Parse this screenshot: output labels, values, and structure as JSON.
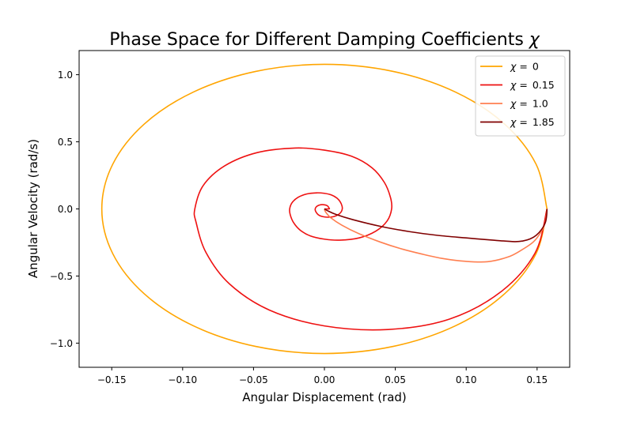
{
  "chart_data": {
    "type": "line",
    "title": "Phase Space for Different Damping Coefficients χ",
    "title_prefix": "Phase Space for Different Damping Coefficients ",
    "title_symbol": "χ",
    "xlabel": "Angular Displacement (rad)",
    "ylabel": "Angular Velocity (rad/s)",
    "xlim": [
      -0.173,
      0.173
    ],
    "ylim": [
      -1.18,
      1.18
    ],
    "grid": false,
    "legend_position": "top-right",
    "x_ticks": [
      {
        "value": -0.15,
        "label": "−0.15"
      },
      {
        "value": -0.1,
        "label": "−0.10"
      },
      {
        "value": -0.05,
        "label": "−0.05"
      },
      {
        "value": 0.0,
        "label": "0.00"
      },
      {
        "value": 0.05,
        "label": "0.05"
      },
      {
        "value": 0.1,
        "label": "0.10"
      },
      {
        "value": 0.15,
        "label": "0.15"
      }
    ],
    "y_ticks": [
      {
        "value": -1.0,
        "label": "−1.0"
      },
      {
        "value": -0.5,
        "label": "−0.5"
      },
      {
        "value": 0.0,
        "label": "0.0"
      },
      {
        "value": 0.5,
        "label": "0.5"
      },
      {
        "value": 1.0,
        "label": "1.0"
      }
    ],
    "series": [
      {
        "name": "0",
        "legend_symbol": "χ =",
        "legend_label": "0",
        "color": "#ffa500",
        "points": [
          [
            0.157,
            0.0
          ],
          [
            0.1493,
            -0.3329
          ],
          [
            0.127,
            -0.6332
          ],
          [
            0.0923,
            -0.8715
          ],
          [
            0.0485,
            -1.0245
          ],
          [
            0.0,
            -1.0772
          ],
          [
            -0.0485,
            -1.0245
          ],
          [
            -0.0923,
            -0.8715
          ],
          [
            -0.127,
            -0.6332
          ],
          [
            -0.1493,
            -0.3329
          ],
          [
            -0.157,
            0.0
          ],
          [
            -0.1493,
            0.3329
          ],
          [
            -0.127,
            0.6332
          ],
          [
            -0.0923,
            0.8715
          ],
          [
            -0.0485,
            1.0245
          ],
          [
            0.0,
            1.0772
          ],
          [
            0.0485,
            1.0245
          ],
          [
            0.0923,
            0.8715
          ],
          [
            0.127,
            0.6332
          ],
          [
            0.1493,
            0.3329
          ],
          [
            0.157,
            0.0
          ]
        ]
      },
      {
        "name": "0.15",
        "legend_symbol": "χ =",
        "legend_label": "0.15",
        "color": "#ee1111",
        "points": [
          [
            0.157,
            0.0
          ],
          [
            0.1485,
            -0.3304
          ],
          [
            0.1244,
            -0.6182
          ],
          [
            0.0882,
            -0.8208
          ],
          [
            0.0449,
            -0.8985
          ],
          [
            0.0,
            -0.8718
          ],
          [
            -0.0389,
            -0.7531
          ],
          [
            -0.067,
            -0.5584
          ],
          [
            -0.0835,
            -0.3254
          ],
          [
            -0.0905,
            -0.1
          ],
          [
            -0.0914,
            0.0
          ],
          [
            -0.0855,
            0.1742
          ],
          [
            -0.0702,
            0.3217
          ],
          [
            -0.0474,
            0.4196
          ],
          [
            -0.0207,
            0.4537
          ],
          [
            0.0,
            0.4381
          ],
          [
            0.0191,
            0.3925
          ],
          [
            0.0336,
            0.3062
          ],
          [
            0.0423,
            0.1971
          ],
          [
            0.0466,
            0.0854
          ],
          [
            0.0474,
            0.0
          ],
          [
            0.0442,
            -0.0903
          ],
          [
            0.0362,
            -0.1661
          ],
          [
            0.0245,
            -0.2159
          ],
          [
            0.0107,
            -0.2328
          ],
          [
            0.0,
            -0.2252
          ],
          [
            -0.0098,
            -0.2016
          ],
          [
            -0.0172,
            -0.1572
          ],
          [
            -0.0218,
            -0.1014
          ],
          [
            -0.0241,
            -0.0438
          ],
          [
            -0.0245,
            0.0
          ],
          [
            -0.0228,
            0.0466
          ],
          [
            -0.0187,
            0.0854
          ],
          [
            -0.0126,
            0.1112
          ],
          [
            -0.0055,
            0.1198
          ],
          [
            0.0,
            0.1161
          ],
          [
            0.005,
            0.1037
          ],
          [
            0.0088,
            0.0808
          ],
          [
            0.0112,
            0.0522
          ],
          [
            0.0124,
            0.0226
          ],
          [
            0.0126,
            0.0
          ],
          [
            0.0117,
            -0.0238
          ],
          [
            0.0096,
            -0.0438
          ],
          [
            0.0065,
            -0.0572
          ],
          [
            0.0028,
            -0.0617
          ],
          [
            0.0,
            -0.0597
          ],
          [
            -0.0026,
            -0.0533
          ],
          [
            -0.0045,
            -0.0416
          ],
          [
            -0.0057,
            -0.0268
          ],
          [
            -0.0064,
            -0.0116
          ],
          [
            -0.0065,
            0.0
          ],
          [
            -0.006,
            0.0122
          ],
          [
            -0.0049,
            0.0225
          ],
          [
            -0.0033,
            0.0294
          ],
          [
            -0.0015,
            0.0317
          ],
          [
            0.0,
            0.0307
          ],
          [
            0.0013,
            0.0274
          ],
          [
            0.0023,
            0.0214
          ],
          [
            0.0029,
            0.0138
          ],
          [
            0.0033,
            0.006
          ],
          [
            0.0033,
            0.0
          ],
          [
            0.0,
            0.0
          ]
        ]
      },
      {
        "name": "1.0",
        "legend_symbol": "χ =",
        "legend_label": "1.0",
        "color": "#ff7f50",
        "points": [
          [
            0.157,
            0.0
          ],
          [
            0.156,
            -0.0905
          ],
          [
            0.1532,
            -0.1639
          ],
          [
            0.1474,
            -0.2456
          ],
          [
            0.1386,
            -0.3091
          ],
          [
            0.1296,
            -0.3577
          ],
          [
            0.1152,
            -0.3932
          ],
          [
            0.0995,
            -0.3905
          ],
          [
            0.084,
            -0.3704
          ],
          [
            0.0689,
            -0.3366
          ],
          [
            0.0535,
            -0.2952
          ],
          [
            0.0394,
            -0.2468
          ],
          [
            0.0244,
            -0.1848
          ],
          [
            0.0124,
            -0.1215
          ],
          [
            0.0045,
            -0.0659
          ],
          [
            0.0014,
            -0.0308
          ],
          [
            0.0003,
            -0.0118
          ],
          [
            0.0,
            0.0
          ]
        ]
      },
      {
        "name": "1.85",
        "legend_symbol": "χ =",
        "legend_label": "1.85",
        "color": "#800000",
        "points": [
          [
            0.157,
            0.0
          ],
          [
            0.1567,
            -0.0541
          ],
          [
            0.1558,
            -0.1023
          ],
          [
            0.1532,
            -0.1527
          ],
          [
            0.1494,
            -0.1962
          ],
          [
            0.1452,
            -0.2228
          ],
          [
            0.14,
            -0.2386
          ],
          [
            0.1339,
            -0.2436
          ],
          [
            0.12,
            -0.2336
          ],
          [
            0.1,
            -0.2161
          ],
          [
            0.08,
            -0.1972
          ],
          [
            0.06,
            -0.1691
          ],
          [
            0.04,
            -0.1309
          ],
          [
            0.02,
            -0.0798
          ],
          [
            0.008,
            -0.0404
          ],
          [
            0.0022,
            -0.0135
          ],
          [
            0.0,
            0.0
          ]
        ]
      }
    ]
  }
}
